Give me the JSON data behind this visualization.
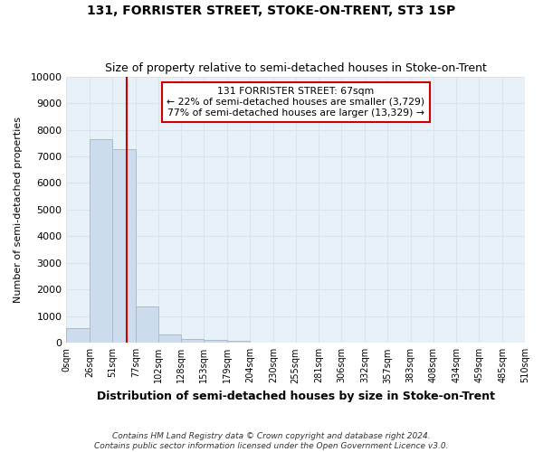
{
  "title": "131, FORRISTER STREET, STOKE-ON-TRENT, ST3 1SP",
  "subtitle": "Size of property relative to semi-detached houses in Stoke-on-Trent",
  "xlabel": "Distribution of semi-detached houses by size in Stoke-on-Trent",
  "ylabel": "Number of semi-detached properties",
  "footnote": "Contains HM Land Registry data © Crown copyright and database right 2024.\nContains public sector information licensed under the Open Government Licence v3.0.",
  "bar_edges": [
    0,
    26,
    51,
    77,
    102,
    128,
    153,
    179,
    204,
    230,
    255,
    281,
    306,
    332,
    357,
    383,
    408,
    434,
    459,
    485,
    510
  ],
  "bar_values": [
    560,
    7650,
    7280,
    1370,
    310,
    160,
    120,
    70,
    0,
    0,
    0,
    0,
    0,
    0,
    0,
    0,
    0,
    0,
    0,
    0
  ],
  "bar_color": "#ccdcec",
  "bar_edge_color": "#aabccc",
  "subject_value": 67,
  "subject_label": "131 FORRISTER STREET: 67sqm",
  "pct_smaller": 22,
  "pct_larger": 77,
  "n_smaller": 3729,
  "n_larger": 13329,
  "vline_color": "#cc0000",
  "annotation_box_color": "#cc0000",
  "ylim": [
    0,
    10000
  ],
  "yticks": [
    0,
    1000,
    2000,
    3000,
    4000,
    5000,
    6000,
    7000,
    8000,
    9000,
    10000
  ],
  "xtick_labels": [
    "0sqm",
    "26sqm",
    "51sqm",
    "77sqm",
    "102sqm",
    "128sqm",
    "153sqm",
    "179sqm",
    "204sqm",
    "230sqm",
    "255sqm",
    "281sqm",
    "306sqm",
    "332sqm",
    "357sqm",
    "383sqm",
    "408sqm",
    "434sqm",
    "459sqm",
    "485sqm",
    "510sqm"
  ],
  "background_color": "#ffffff",
  "grid_color": "#d8e4f0",
  "plot_bg_color": "#e8f0f8"
}
